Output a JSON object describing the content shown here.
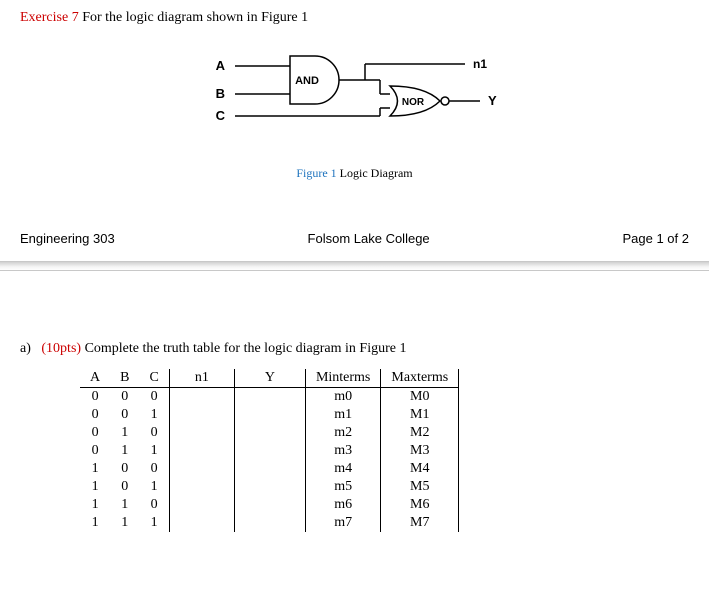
{
  "exercise": {
    "label": "Exercise 7",
    "text": "For the logic diagram shown in Figure 1"
  },
  "diagram": {
    "inputs": {
      "A": "A",
      "B": "B",
      "C": "C"
    },
    "gates": {
      "and": "AND",
      "nor": "NOR"
    },
    "signals": {
      "n1": "n1",
      "Y": "Y"
    },
    "caption_label": "Figure 1",
    "caption_text": "Logic Diagram",
    "colors": {
      "stroke": "#000000",
      "label_font": "Arial",
      "label_size": 12,
      "caption_label_color": "#1e73be"
    }
  },
  "footer": {
    "left": "Engineering 303",
    "center": "Folsom Lake College",
    "right": "Page 1 of 2"
  },
  "part_a": {
    "letter": "a)",
    "pts": "(10pts)",
    "text": "Complete the truth table for the logic diagram in Figure 1"
  },
  "truth_table": {
    "columns": [
      "A",
      "B",
      "C",
      "n1",
      "Y",
      "Minterms",
      "Maxterms"
    ],
    "rows": [
      {
        "A": "0",
        "B": "0",
        "C": "0",
        "n1": "",
        "Y": "",
        "min": "m0",
        "max": "M0"
      },
      {
        "A": "0",
        "B": "0",
        "C": "1",
        "n1": "",
        "Y": "",
        "min": "m1",
        "max": "M1"
      },
      {
        "A": "0",
        "B": "1",
        "C": "0",
        "n1": "",
        "Y": "",
        "min": "m2",
        "max": "M2"
      },
      {
        "A": "0",
        "B": "1",
        "C": "1",
        "n1": "",
        "Y": "",
        "min": "m3",
        "max": "M3"
      },
      {
        "A": "1",
        "B": "0",
        "C": "0",
        "n1": "",
        "Y": "",
        "min": "m4",
        "max": "M4"
      },
      {
        "A": "1",
        "B": "0",
        "C": "1",
        "n1": "",
        "Y": "",
        "min": "m5",
        "max": "M5"
      },
      {
        "A": "1",
        "B": "1",
        "C": "0",
        "n1": "",
        "Y": "",
        "min": "m6",
        "max": "M6"
      },
      {
        "A": "1",
        "B": "1",
        "C": "1",
        "n1": "",
        "Y": "",
        "min": "m7",
        "max": "M7"
      }
    ]
  }
}
